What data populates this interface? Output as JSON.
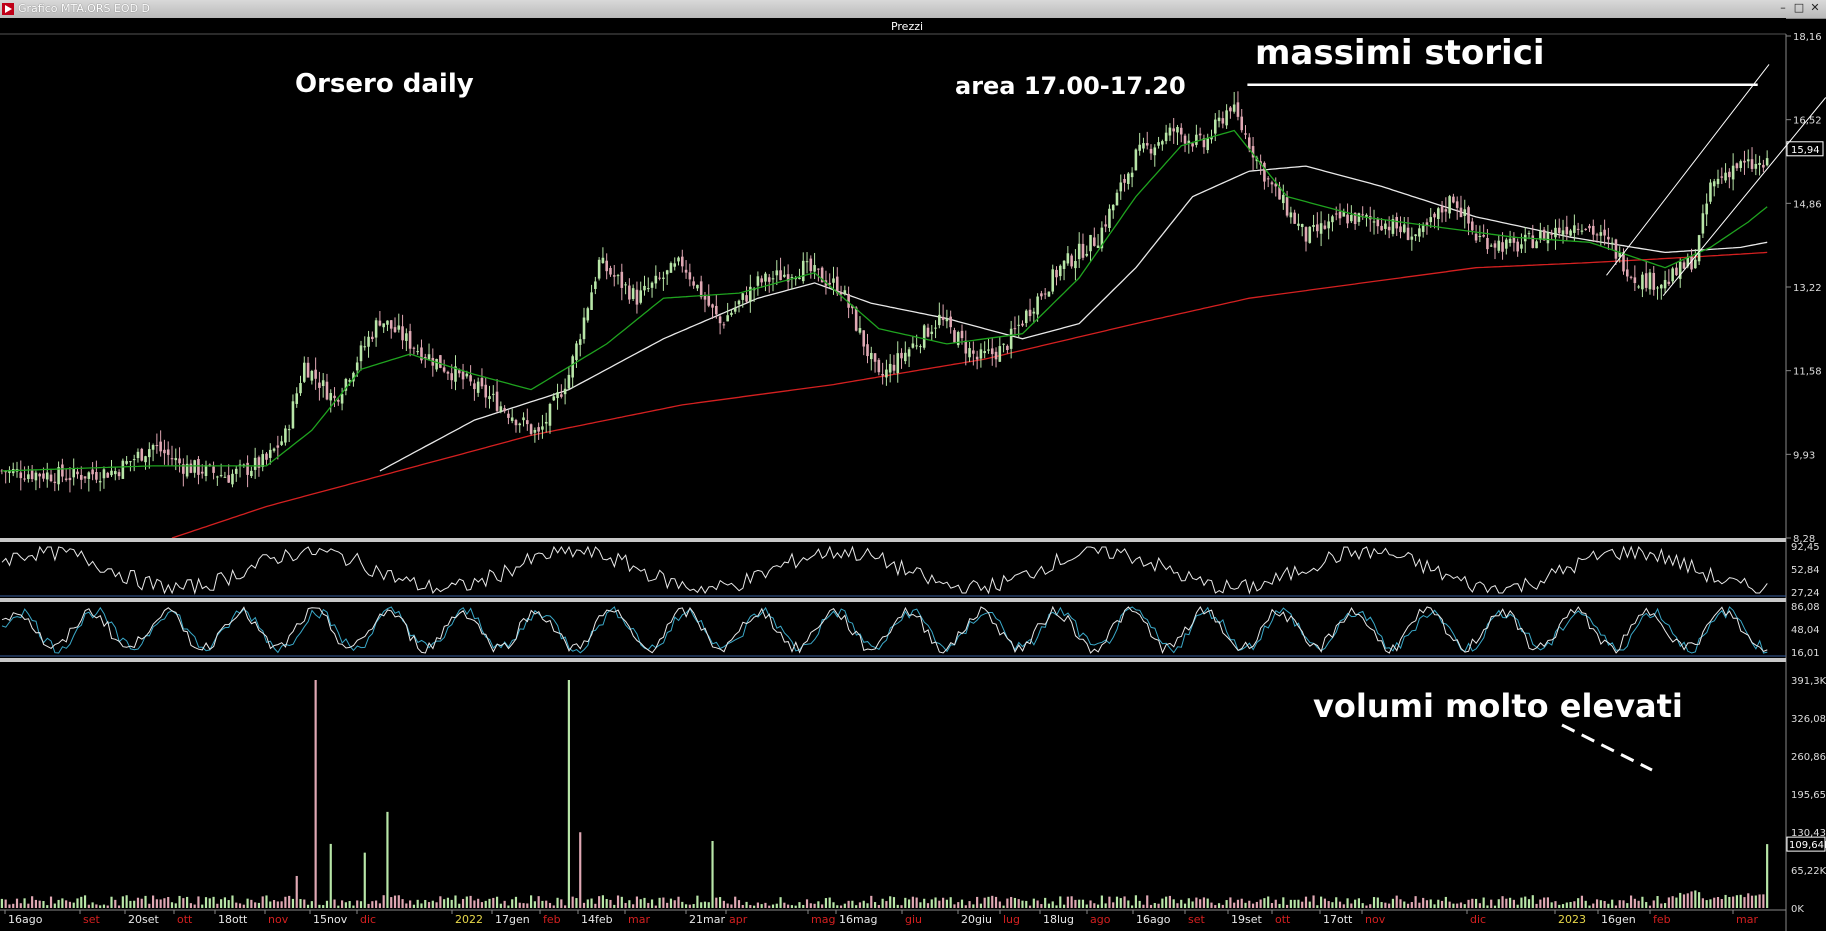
{
  "window": {
    "title": "Grafico MTA.ORS EOD D"
  },
  "panel_title": "Prezzi",
  "annotations": {
    "chart_label": "Orsero daily",
    "resistance_label": "area 17.00-17.20",
    "ath_label": "massimi storici",
    "volume_label": "volumi molto elevati"
  },
  "colors": {
    "background": "#000000",
    "candle_up": "#b8e6a8",
    "candle_down": "#e0a8b4",
    "ma_fast": "#1fa31f",
    "ma_mid": "#e8e8e8",
    "ma_slow": "#d42020",
    "stoch_k": "#e8e8e8",
    "stoch_d": "#3aa8c8",
    "date_label": "#e8e8e8",
    "month_label": "#d42020",
    "year_label": "#e8d84a"
  },
  "x_axis_labels": [
    {
      "t": "16ago",
      "c": "date"
    },
    {
      "t": "set",
      "c": "month"
    },
    {
      "t": "20set",
      "c": "date"
    },
    {
      "t": "ott",
      "c": "month"
    },
    {
      "t": "18ott",
      "c": "date"
    },
    {
      "t": "nov",
      "c": "month"
    },
    {
      "t": "15nov",
      "c": "date"
    },
    {
      "t": "dic",
      "c": "month"
    },
    {
      "t": "2022",
      "c": "year"
    },
    {
      "t": "17gen",
      "c": "date"
    },
    {
      "t": "feb",
      "c": "month"
    },
    {
      "t": "14feb",
      "c": "date"
    },
    {
      "t": "mar",
      "c": "month"
    },
    {
      "t": "21mar",
      "c": "date"
    },
    {
      "t": "apr",
      "c": "month"
    },
    {
      "t": "mag",
      "c": "month"
    },
    {
      "t": "16mag",
      "c": "date"
    },
    {
      "t": "giu",
      "c": "month"
    },
    {
      "t": "20giu",
      "c": "date"
    },
    {
      "t": "lug",
      "c": "month"
    },
    {
      "t": "18lug",
      "c": "date"
    },
    {
      "t": "ago",
      "c": "month"
    },
    {
      "t": "16ago",
      "c": "date"
    },
    {
      "t": "set",
      "c": "month"
    },
    {
      "t": "19set",
      "c": "date"
    },
    {
      "t": "ott",
      "c": "month"
    },
    {
      "t": "17ott",
      "c": "date"
    },
    {
      "t": "nov",
      "c": "month"
    },
    {
      "t": "dic",
      "c": "month"
    },
    {
      "t": "2023",
      "c": "year"
    },
    {
      "t": "16gen",
      "c": "date"
    },
    {
      "t": "feb",
      "c": "month"
    },
    {
      "t": "mar",
      "c": "month"
    }
  ],
  "chart_data": [
    {
      "type": "candlestick",
      "title": "Prezzi",
      "ylim": [
        8.28,
        18.16
      ],
      "y_ticks": [
        "18,16",
        "16,52",
        "14,86",
        "13,22",
        "11,58",
        "9,93",
        "8,28"
      ],
      "last_price": "15,94",
      "close_points": [
        [
          0,
          9.6
        ],
        [
          18,
          9.5
        ],
        [
          30,
          9.6
        ],
        [
          40,
          10.1
        ],
        [
          48,
          9.7
        ],
        [
          60,
          9.5
        ],
        [
          70,
          9.8
        ],
        [
          75,
          10.3
        ],
        [
          80,
          11.7
        ],
        [
          88,
          11.0
        ],
        [
          100,
          12.6
        ],
        [
          110,
          12.0
        ],
        [
          120,
          11.5
        ],
        [
          130,
          11.0
        ],
        [
          142,
          10.3
        ],
        [
          150,
          11.5
        ],
        [
          158,
          13.7
        ],
        [
          168,
          13.0
        ],
        [
          180,
          13.7
        ],
        [
          190,
          12.5
        ],
        [
          200,
          13.3
        ],
        [
          212,
          13.6
        ],
        [
          222,
          13.2
        ],
        [
          232,
          11.4
        ],
        [
          240,
          12.0
        ],
        [
          248,
          12.6
        ],
        [
          258,
          11.8
        ],
        [
          265,
          12.0
        ],
        [
          272,
          12.8
        ],
        [
          280,
          13.6
        ],
        [
          290,
          14.2
        ],
        [
          300,
          15.8
        ],
        [
          310,
          16.3
        ],
        [
          318,
          16.0
        ],
        [
          325,
          16.8
        ],
        [
          335,
          15.3
        ],
        [
          345,
          14.2
        ],
        [
          355,
          14.6
        ],
        [
          365,
          14.5
        ],
        [
          375,
          14.2
        ],
        [
          384,
          15.0
        ],
        [
          390,
          14.2
        ],
        [
          400,
          14.0
        ],
        [
          410,
          14.3
        ],
        [
          418,
          14.5
        ],
        [
          426,
          14.0
        ],
        [
          432,
          13.4
        ],
        [
          440,
          13.3
        ],
        [
          448,
          13.8
        ],
        [
          452,
          15.2
        ],
        [
          458,
          15.6
        ],
        [
          465,
          15.6
        ]
      ],
      "ma_fast_points": [
        [
          0,
          9.6
        ],
        [
          40,
          9.7
        ],
        [
          70,
          9.7
        ],
        [
          82,
          10.4
        ],
        [
          95,
          11.6
        ],
        [
          108,
          11.9
        ],
        [
          125,
          11.5
        ],
        [
          140,
          11.2
        ],
        [
          160,
          12.1
        ],
        [
          175,
          13.0
        ],
        [
          195,
          13.1
        ],
        [
          215,
          13.5
        ],
        [
          232,
          12.4
        ],
        [
          250,
          12.1
        ],
        [
          270,
          12.3
        ],
        [
          285,
          13.4
        ],
        [
          300,
          15.0
        ],
        [
          312,
          16.0
        ],
        [
          326,
          16.3
        ],
        [
          340,
          15.0
        ],
        [
          360,
          14.6
        ],
        [
          380,
          14.4
        ],
        [
          400,
          14.2
        ],
        [
          420,
          14.1
        ],
        [
          440,
          13.6
        ],
        [
          452,
          14.0
        ],
        [
          462,
          14.5
        ],
        [
          467,
          14.8
        ]
      ],
      "ma_mid_points": [
        [
          100,
          9.6
        ],
        [
          125,
          10.6
        ],
        [
          150,
          11.2
        ],
        [
          175,
          12.2
        ],
        [
          200,
          13.0
        ],
        [
          215,
          13.3
        ],
        [
          230,
          12.9
        ],
        [
          250,
          12.6
        ],
        [
          270,
          12.2
        ],
        [
          285,
          12.5
        ],
        [
          300,
          13.6
        ],
        [
          315,
          15.0
        ],
        [
          330,
          15.5
        ],
        [
          345,
          15.6
        ],
        [
          365,
          15.2
        ],
        [
          390,
          14.6
        ],
        [
          415,
          14.2
        ],
        [
          440,
          13.9
        ],
        [
          460,
          14.0
        ],
        [
          467,
          14.1
        ]
      ],
      "ma_slow_points": [
        [
          45,
          8.28
        ],
        [
          70,
          8.9
        ],
        [
          100,
          9.5
        ],
        [
          140,
          10.3
        ],
        [
          180,
          10.9
        ],
        [
          220,
          11.3
        ],
        [
          260,
          11.8
        ],
        [
          300,
          12.5
        ],
        [
          330,
          13.0
        ],
        [
          360,
          13.3
        ],
        [
          390,
          13.6
        ],
        [
          420,
          13.7
        ],
        [
          445,
          13.8
        ],
        [
          467,
          13.9
        ]
      ],
      "trendlines": [
        {
          "from": [
            330,
            17.2
          ],
          "to": [
            465,
            17.2
          ]
        },
        {
          "from": [
            425,
            13.45
          ],
          "to": [
            468,
            17.6
          ]
        },
        {
          "from": [
            440,
            13.05
          ],
          "to": [
            483,
            16.95
          ]
        }
      ]
    },
    {
      "type": "line",
      "title": "",
      "y_ticks": [
        "92,45",
        "52,84",
        "27,24"
      ]
    },
    {
      "type": "line",
      "title": "",
      "y_ticks": [
        "86,08",
        "48,04",
        "16,01"
      ]
    },
    {
      "type": "bar",
      "title": "",
      "y_ticks": [
        "391,3K",
        "326,08K",
        "260,86K",
        "195,65K",
        "130,43K",
        "65,22K",
        "0K"
      ],
      "last_value": "109,64K",
      "spikes": [
        [
          83,
          391.3
        ],
        [
          150,
          391.3
        ],
        [
          87,
          110
        ],
        [
          102,
          165
        ],
        [
          78,
          55
        ],
        [
          96,
          95
        ],
        [
          188,
          115
        ],
        [
          153,
          130
        ],
        [
          467,
          109.64
        ]
      ]
    }
  ]
}
